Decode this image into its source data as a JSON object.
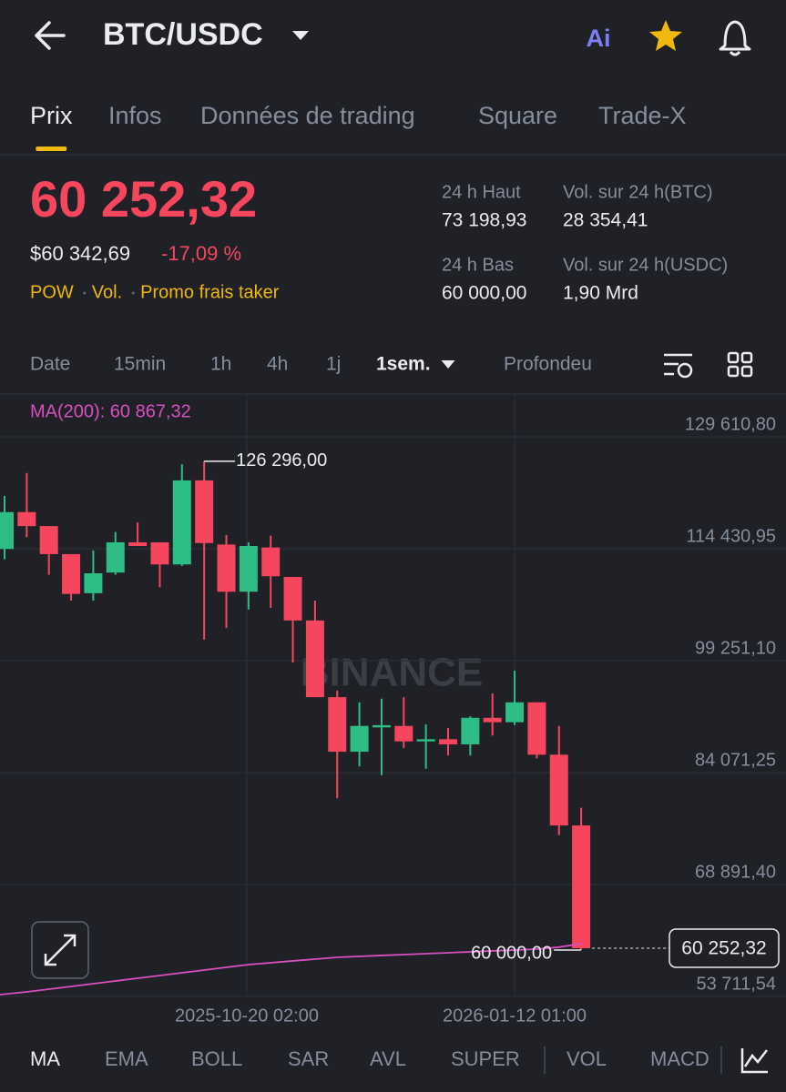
{
  "header": {
    "pair": "BTC/USDC",
    "ai_badge": "Ai"
  },
  "tabs": {
    "items": [
      "Prix",
      "Infos",
      "Données de trading",
      "Square",
      "Trade-X"
    ],
    "active": "Prix"
  },
  "price": {
    "last": "60 252,32",
    "usd": "$60 342,69",
    "change": "-17,09 %",
    "tags": [
      "POW",
      "Vol.",
      "Promo frais taker"
    ]
  },
  "stats": [
    {
      "label": "24 h Haut",
      "value": "73 198,93"
    },
    {
      "label": "Vol. sur 24 h(BTC)",
      "value": "28 354,41"
    },
    {
      "label": "24 h Bas",
      "value": "60 000,00"
    },
    {
      "label": "Vol. sur 24 h(USDC)",
      "value": "1,90 Mrd"
    }
  ],
  "intervals": {
    "items": [
      "Date",
      "15min",
      "1h",
      "4h",
      "1j",
      "1sem.",
      "Profondeu"
    ],
    "active": "1sem."
  },
  "chart": {
    "type": "candlestick",
    "ma_label": "MA(200): 60 867,32",
    "watermark": "BINANCE",
    "ylim": [
      53711.54,
      129610.8
    ],
    "yticks": [
      {
        "value": 129610.8,
        "label": "129 610,80"
      },
      {
        "value": 114430.95,
        "label": "114 430,95"
      },
      {
        "value": 99251.1,
        "label": "99 251,10"
      },
      {
        "value": 84071.25,
        "label": "84 071,25"
      },
      {
        "value": 68891.4,
        "label": "68 891,40"
      },
      {
        "value": 53711.54,
        "label": "53 711,54"
      }
    ],
    "xlabels": [
      "2025-10-20 02:00",
      "2026-01-12 01:00"
    ],
    "up_color": "#2ebd85",
    "down_color": "#f6465d",
    "ma_color": "#d94fc0",
    "candles": [
      {
        "open": 114400,
        "high": 121600,
        "low": 113000,
        "close": 119400
      },
      {
        "open": 119400,
        "high": 124700,
        "low": 116000,
        "close": 117500
      },
      {
        "open": 117500,
        "high": 117500,
        "low": 110900,
        "close": 113700
      },
      {
        "open": 113700,
        "high": 113700,
        "low": 107400,
        "close": 108300
      },
      {
        "open": 108400,
        "high": 114200,
        "low": 107400,
        "close": 111100
      },
      {
        "open": 111200,
        "high": 116700,
        "low": 110900,
        "close": 115300
      },
      {
        "open": 115300,
        "high": 118000,
        "low": 114800,
        "close": 114800
      },
      {
        "open": 115300,
        "high": 115300,
        "low": 109200,
        "close": 112300
      },
      {
        "open": 112300,
        "high": 125900,
        "low": 112100,
        "close": 123700
      },
      {
        "open": 123700,
        "high": 126296,
        "low": 102100,
        "close": 115200
      },
      {
        "open": 115000,
        "high": 116300,
        "low": 103700,
        "close": 108600
      },
      {
        "open": 108600,
        "high": 115300,
        "low": 106200,
        "close": 114800
      },
      {
        "open": 114600,
        "high": 116200,
        "low": 106400,
        "close": 110700
      },
      {
        "open": 110600,
        "high": 110600,
        "low": 99000,
        "close": 104700
      },
      {
        "open": 104700,
        "high": 107400,
        "low": 94300,
        "close": 94300
      },
      {
        "open": 94300,
        "high": 95200,
        "low": 80600,
        "close": 86900
      },
      {
        "open": 86900,
        "high": 93600,
        "low": 84900,
        "close": 90400
      },
      {
        "open": 90200,
        "high": 94100,
        "low": 83700,
        "close": 90500
      },
      {
        "open": 90400,
        "high": 94300,
        "low": 87400,
        "close": 88300
      },
      {
        "open": 88300,
        "high": 90600,
        "low": 84600,
        "close": 88600
      },
      {
        "open": 88600,
        "high": 90100,
        "low": 86400,
        "close": 87900
      },
      {
        "open": 87900,
        "high": 91700,
        "low": 86400,
        "close": 91500
      },
      {
        "open": 91500,
        "high": 94800,
        "low": 89100,
        "close": 90900
      },
      {
        "open": 90900,
        "high": 97900,
        "low": 90500,
        "close": 93600
      },
      {
        "open": 93600,
        "high": 93600,
        "low": 86000,
        "close": 86500
      },
      {
        "open": 86500,
        "high": 90400,
        "low": 75600,
        "close": 76900
      },
      {
        "open": 76900,
        "high": 79300,
        "low": 60000,
        "close": 60252.32
      }
    ],
    "ma": {
      "values": [
        53960,
        54330,
        54700,
        55070,
        55440,
        55810,
        56180,
        56550,
        56920,
        57290,
        57660,
        58030,
        58280,
        58530,
        58770,
        59020,
        59140,
        59270,
        59390,
        59510,
        59640,
        59760,
        59890,
        60010,
        60130,
        60400,
        60867.32
      ]
    },
    "high_label": {
      "value": 126296,
      "label": "126 296,00"
    },
    "low_label": {
      "value": 60000,
      "label": "60 000,00"
    },
    "last_label": {
      "value": 60252.32,
      "label": "60 252,32"
    }
  },
  "indicators": {
    "items": [
      "MA",
      "EMA",
      "BOLL",
      "SAR",
      "AVL",
      "SUPER",
      "VOL",
      "MACD"
    ],
    "active": "MA"
  }
}
